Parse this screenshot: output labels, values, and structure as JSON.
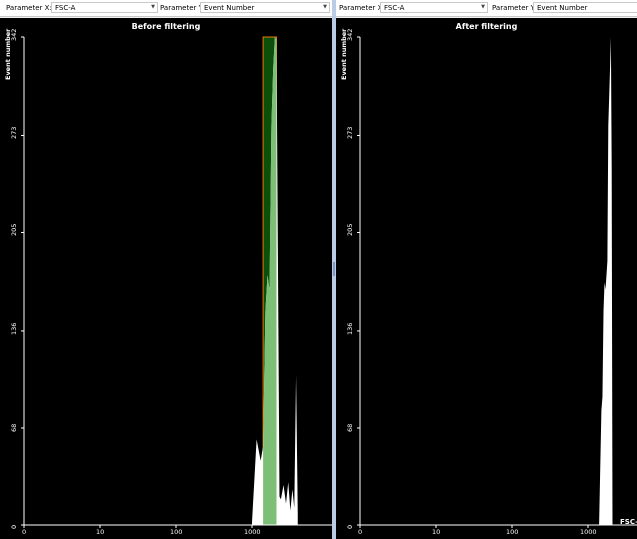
{
  "panels": [
    {
      "param_x_label": "Parameter X:",
      "param_x_value": "FSC-A",
      "param_y_label": "Parameter Y:",
      "param_y_value": "Event Number",
      "title": "Before filtering",
      "y_axis_label": "Event number",
      "x_axis_label": ""
    },
    {
      "param_x_label": "Parameter X:",
      "param_x_value": "FSC-A",
      "param_y_label": "Parameter Y:",
      "param_y_value": "Event Number",
      "title": "After filtering",
      "y_axis_label": "Event number",
      "x_axis_label": "FSC-"
    }
  ],
  "chart_data": [
    {
      "type": "area",
      "title": "Before filtering",
      "ylabel": "Event number",
      "xscale": "log",
      "ylim": [
        0,
        342
      ],
      "y_ticks": [
        "0",
        "68",
        "136",
        "205",
        "273",
        "342"
      ],
      "x_ticks": [
        "0",
        "10",
        "100",
        "1000"
      ],
      "x": [
        1000,
        1150,
        1300,
        1400,
        1500,
        1600,
        1700,
        1800,
        1900,
        2000,
        2100,
        2300,
        2400,
        2600,
        2800,
        3000,
        3200,
        3400,
        3600,
        3800,
        4000
      ],
      "y": [
        2,
        60,
        45,
        55,
        150,
        175,
        165,
        280,
        320,
        342,
        340,
        20,
        18,
        28,
        15,
        30,
        10,
        25,
        12,
        105,
        8
      ],
      "gate": {
        "from": 1400,
        "to": 2100,
        "color": "#0c4f0a",
        "fill_color": "#7dbf77",
        "border_color": "#ee7700"
      },
      "colors": {
        "background": "#000000",
        "histogram": "#ffffff"
      }
    },
    {
      "type": "area",
      "title": "After filtering",
      "ylabel": "Event number",
      "xlabel": "FSC-",
      "xscale": "log",
      "ylim": [
        0,
        342
      ],
      "y_ticks": [
        "0",
        "68",
        "136",
        "205",
        "273",
        "342"
      ],
      "x_ticks": [
        "0",
        "10",
        "100",
        "1000"
      ],
      "x": [
        1400,
        1500,
        1550,
        1600,
        1650,
        1700,
        1750,
        1800,
        1850,
        1900,
        1950,
        2000,
        2050,
        2100
      ],
      "y": [
        0,
        80,
        90,
        150,
        170,
        165,
        175,
        185,
        280,
        300,
        320,
        342,
        250,
        0
      ],
      "colors": {
        "background": "#000000",
        "histogram": "#ffffff"
      }
    }
  ]
}
